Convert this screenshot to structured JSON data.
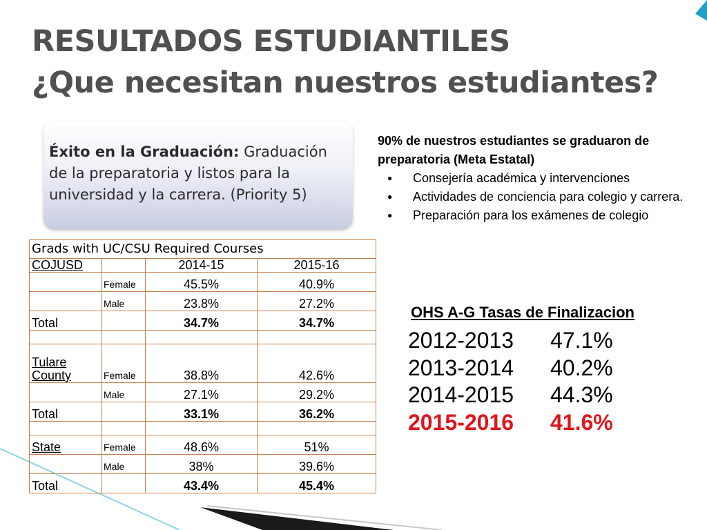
{
  "title": {
    "line1": "RESULTADOS ESTUDIANTILES",
    "line2": "¿Que necesitan nuestros estudiantes?"
  },
  "callout": {
    "bold": "Éxito en la Graduación:",
    "text": " Graduación de la preparatoria y listos para la universidad y la carrera. (Priority 5)"
  },
  "bullets": {
    "lead": "90% de nuestros estudiantes se graduaron de preparatoria (Meta Estatal)",
    "items": [
      "Consejería académica y intervenciones",
      "Actividades de conciencia para colegio y carrera.",
      "Preparación para los exámenes de colegio"
    ]
  },
  "ag": {
    "title": "OHS A-G Tasas de Finalizacion",
    "rows": [
      {
        "year": "2012-2013",
        "rate": "47.1%"
      },
      {
        "year": "2013-2014",
        "rate": "40.2%"
      },
      {
        "year": "2014-2015",
        "rate": "44.3%"
      },
      {
        "year": "2015-2016",
        "rate": "41.6%"
      }
    ],
    "highlight_color": "#e0151c"
  },
  "table": {
    "header": "Grads with UC/CSU Required Courses",
    "col_left": "COJUSD",
    "years": [
      "2014-15",
      "2015-16"
    ],
    "cojusd": {
      "female_label": "Female",
      "female": [
        "45.5%",
        "40.9%"
      ],
      "male_label": "Male",
      "male": [
        "23.8%",
        "27.2%"
      ],
      "total_label": "Total",
      "total": [
        "34.7%",
        "34.7%"
      ]
    },
    "county": {
      "name_line1": "Tulare",
      "name_line2": "County",
      "female_label": "Female",
      "female": [
        "38.8%",
        "42.6%"
      ],
      "male_label": "Male",
      "male": [
        "27.1%",
        "29.2%"
      ],
      "total_label": "Total",
      "total": [
        "33.1%",
        "36.2%"
      ]
    },
    "state": {
      "name": "State",
      "female_label": "Female",
      "female": [
        "48.6%",
        "51%"
      ],
      "male_label": "Male",
      "male": [
        "38%",
        "39.6%"
      ],
      "total_label": "Total",
      "total": [
        "43.4%",
        "45.4%"
      ]
    }
  }
}
